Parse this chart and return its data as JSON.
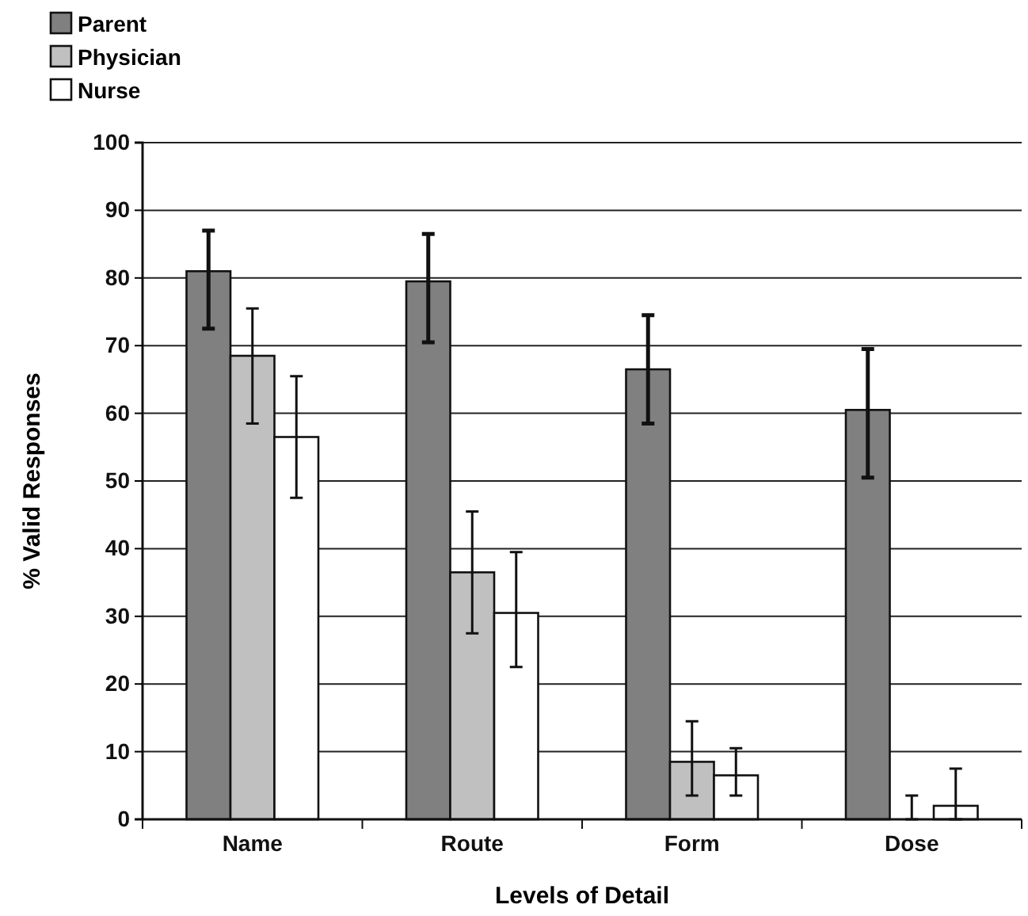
{
  "chart_data": {
    "type": "bar",
    "xlabel": "Levels of Detail",
    "ylabel": "% Valid Responses",
    "categories": [
      "Name",
      "Route",
      "Form",
      "Dose"
    ],
    "series": [
      {
        "name": "Parent",
        "color": "#808080",
        "values": [
          81,
          79.5,
          66.5,
          60.5
        ],
        "errors": [
          [
            72.5,
            87
          ],
          [
            70.5,
            86.5
          ],
          [
            58.5,
            74.5
          ],
          [
            50.5,
            69.5
          ]
        ]
      },
      {
        "name": "Physician",
        "color": "#c0c0c0",
        "values": [
          68.5,
          36.5,
          8.5,
          0
        ],
        "errors": [
          [
            58.5,
            75.5
          ],
          [
            27.5,
            45.5
          ],
          [
            3.5,
            14.5
          ],
          [
            0,
            3.5
          ]
        ]
      },
      {
        "name": "Nurse",
        "color": "#ffffff",
        "values": [
          56.5,
          30.5,
          6.5,
          2
        ],
        "errors": [
          [
            47.5,
            65.5
          ],
          [
            22.5,
            39.5
          ],
          [
            3.5,
            10.5
          ],
          [
            0,
            7.5
          ]
        ]
      }
    ],
    "ylim": [
      0,
      100
    ],
    "yticks": [
      0,
      10,
      20,
      30,
      40,
      50,
      60,
      70,
      80,
      90,
      100
    ],
    "grid": "y",
    "legend": "top left"
  }
}
